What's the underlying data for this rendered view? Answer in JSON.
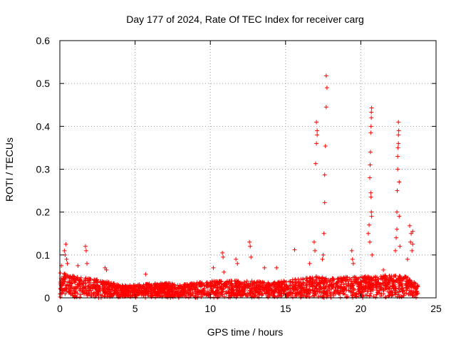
{
  "chart_data": {
    "type": "scatter",
    "title": "Day 177 of 2024, Rate Of TEC Index for receiver carg",
    "xlabel": "GPS time / hours",
    "ylabel": "ROTI / TECUs",
    "xlim": [
      0,
      25
    ],
    "ylim": [
      0,
      0.6
    ],
    "xticks": [
      0,
      5,
      10,
      15,
      20,
      25
    ],
    "yticks": [
      0,
      0.1,
      0.2,
      0.3,
      0.4,
      0.5,
      0.6
    ],
    "xtick_labels": [
      "0",
      "5",
      "10",
      "15",
      "20",
      "25"
    ],
    "ytick_labels": [
      "0",
      "0.1",
      "0.2",
      "0.3",
      "0.4",
      "0.5",
      "0.6"
    ],
    "grid": true,
    "marker": "+",
    "color": "#ff0000",
    "baseline": {
      "x_range": [
        0,
        23.8
      ],
      "description": "dense band of points between 0 and ~0.05 TECUs",
      "envelope": [
        {
          "x": 0,
          "top": 0.06
        },
        {
          "x": 1,
          "top": 0.05
        },
        {
          "x": 2,
          "top": 0.045
        },
        {
          "x": 3,
          "top": 0.04
        },
        {
          "x": 4,
          "top": 0.03
        },
        {
          "x": 5,
          "top": 0.03
        },
        {
          "x": 6,
          "top": 0.035
        },
        {
          "x": 7,
          "top": 0.035
        },
        {
          "x": 8,
          "top": 0.03
        },
        {
          "x": 9,
          "top": 0.035
        },
        {
          "x": 10,
          "top": 0.04
        },
        {
          "x": 11,
          "top": 0.04
        },
        {
          "x": 12,
          "top": 0.04
        },
        {
          "x": 13,
          "top": 0.04
        },
        {
          "x": 14,
          "top": 0.035
        },
        {
          "x": 15,
          "top": 0.04
        },
        {
          "x": 16,
          "top": 0.045
        },
        {
          "x": 17,
          "top": 0.05
        },
        {
          "x": 18,
          "top": 0.045
        },
        {
          "x": 19,
          "top": 0.05
        },
        {
          "x": 20,
          "top": 0.05
        },
        {
          "x": 21,
          "top": 0.05
        },
        {
          "x": 22,
          "top": 0.055
        },
        {
          "x": 23,
          "top": 0.05
        },
        {
          "x": 23.8,
          "top": 0.03
        }
      ]
    },
    "points": [
      {
        "x": 0.1,
        "y": 0.075
      },
      {
        "x": 0.3,
        "y": 0.11
      },
      {
        "x": 0.4,
        "y": 0.125
      },
      {
        "x": 0.35,
        "y": 0.1
      },
      {
        "x": 0.45,
        "y": 0.09
      },
      {
        "x": 0.5,
        "y": 0.08
      },
      {
        "x": 1.2,
        "y": 0.075
      },
      {
        "x": 1.7,
        "y": 0.12
      },
      {
        "x": 1.75,
        "y": 0.11
      },
      {
        "x": 1.8,
        "y": 0.08
      },
      {
        "x": 3.0,
        "y": 0.07
      },
      {
        "x": 3.1,
        "y": 0.065
      },
      {
        "x": 5.7,
        "y": 0.055
      },
      {
        "x": 10.2,
        "y": 0.07
      },
      {
        "x": 10.8,
        "y": 0.105
      },
      {
        "x": 10.85,
        "y": 0.095
      },
      {
        "x": 10.9,
        "y": 0.06
      },
      {
        "x": 11.7,
        "y": 0.09
      },
      {
        "x": 11.8,
        "y": 0.08
      },
      {
        "x": 12.6,
        "y": 0.13
      },
      {
        "x": 12.65,
        "y": 0.12
      },
      {
        "x": 12.7,
        "y": 0.095
      },
      {
        "x": 13.6,
        "y": 0.07
      },
      {
        "x": 14.4,
        "y": 0.07
      },
      {
        "x": 15.6,
        "y": 0.112
      },
      {
        "x": 16.6,
        "y": 0.08
      },
      {
        "x": 16.9,
        "y": 0.13
      },
      {
        "x": 16.95,
        "y": 0.11
      },
      {
        "x": 17.0,
        "y": 0.313
      },
      {
        "x": 17.05,
        "y": 0.36
      },
      {
        "x": 17.1,
        "y": 0.38
      },
      {
        "x": 17.1,
        "y": 0.39
      },
      {
        "x": 17.05,
        "y": 0.41
      },
      {
        "x": 17.5,
        "y": 0.1
      },
      {
        "x": 17.55,
        "y": 0.15
      },
      {
        "x": 17.6,
        "y": 0.222
      },
      {
        "x": 17.6,
        "y": 0.287
      },
      {
        "x": 17.65,
        "y": 0.354
      },
      {
        "x": 17.7,
        "y": 0.445
      },
      {
        "x": 17.75,
        "y": 0.49
      },
      {
        "x": 17.7,
        "y": 0.518
      },
      {
        "x": 17.45,
        "y": 0.09
      },
      {
        "x": 19.4,
        "y": 0.11
      },
      {
        "x": 19.45,
        "y": 0.09
      },
      {
        "x": 19.5,
        "y": 0.08
      },
      {
        "x": 20.5,
        "y": 0.15
      },
      {
        "x": 20.55,
        "y": 0.17
      },
      {
        "x": 20.6,
        "y": 0.28
      },
      {
        "x": 20.62,
        "y": 0.31
      },
      {
        "x": 20.64,
        "y": 0.34
      },
      {
        "x": 20.66,
        "y": 0.385
      },
      {
        "x": 20.68,
        "y": 0.4
      },
      {
        "x": 20.7,
        "y": 0.42
      },
      {
        "x": 20.7,
        "y": 0.433
      },
      {
        "x": 20.72,
        "y": 0.443
      },
      {
        "x": 20.66,
        "y": 0.245
      },
      {
        "x": 20.68,
        "y": 0.235
      },
      {
        "x": 20.7,
        "y": 0.2
      },
      {
        "x": 20.72,
        "y": 0.19
      },
      {
        "x": 20.6,
        "y": 0.13
      },
      {
        "x": 20.75,
        "y": 0.1
      },
      {
        "x": 21.5,
        "y": 0.065
      },
      {
        "x": 22.3,
        "y": 0.11
      },
      {
        "x": 22.35,
        "y": 0.14
      },
      {
        "x": 22.4,
        "y": 0.16
      },
      {
        "x": 22.4,
        "y": 0.2
      },
      {
        "x": 22.42,
        "y": 0.25
      },
      {
        "x": 22.45,
        "y": 0.3
      },
      {
        "x": 22.45,
        "y": 0.33
      },
      {
        "x": 22.47,
        "y": 0.35
      },
      {
        "x": 22.5,
        "y": 0.36
      },
      {
        "x": 22.5,
        "y": 0.38
      },
      {
        "x": 22.52,
        "y": 0.39
      },
      {
        "x": 22.5,
        "y": 0.41
      },
      {
        "x": 22.55,
        "y": 0.27
      },
      {
        "x": 22.55,
        "y": 0.19
      },
      {
        "x": 22.6,
        "y": 0.12
      },
      {
        "x": 23.1,
        "y": 0.09
      },
      {
        "x": 23.25,
        "y": 0.168
      },
      {
        "x": 23.3,
        "y": 0.13
      },
      {
        "x": 23.35,
        "y": 0.15
      },
      {
        "x": 23.45,
        "y": 0.155
      },
      {
        "x": 23.45,
        "y": 0.125
      },
      {
        "x": 23.4,
        "y": 0.11
      }
    ]
  }
}
